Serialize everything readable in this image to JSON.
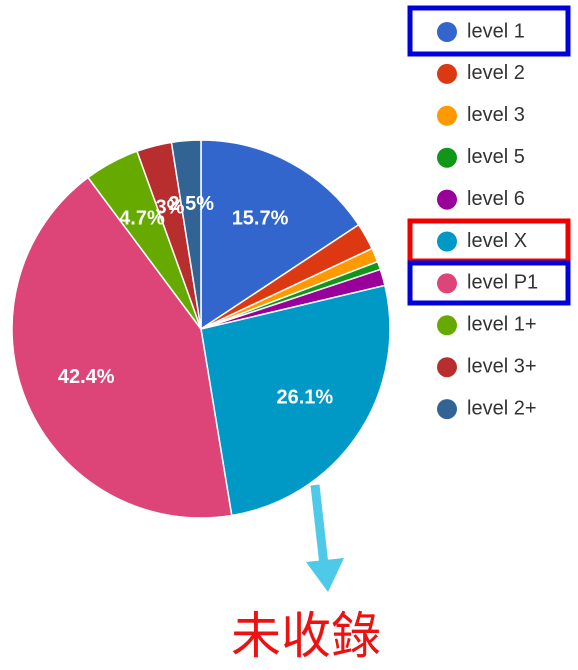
{
  "chart_data": {
    "type": "pie",
    "categories": [
      "level 1",
      "level 2",
      "level 3",
      "level 5",
      "level 6",
      "level X",
      "level P1",
      "level 1+",
      "level 3+",
      "level 2+"
    ],
    "values": [
      15.7,
      2.3,
      1.2,
      0.7,
      1.4,
      26.1,
      42.4,
      4.7,
      3,
      2.5
    ],
    "value_labels": [
      "15.7%",
      null,
      null,
      null,
      null,
      "26.1%",
      "42.4%",
      "4.7%",
      "3%",
      "2.5%"
    ],
    "colors": [
      "#3366cc",
      "#dc3912",
      "#ff9900",
      "#109618",
      "#990099",
      "#0099c6",
      "#dd4477",
      "#66aa00",
      "#b82e2e",
      "#316395"
    ],
    "legend": "right",
    "annotation": "未收錄"
  }
}
